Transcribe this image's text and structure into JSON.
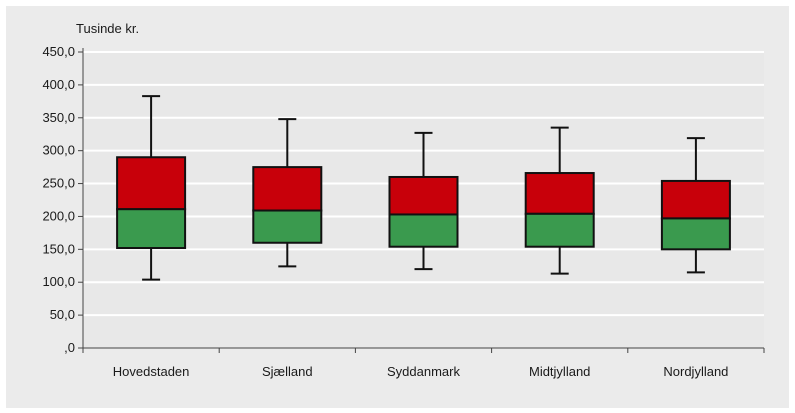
{
  "chart_data": {
    "type": "boxplot",
    "y_unit_label": "Tusinde kr.",
    "ylim": [
      0,
      450
    ],
    "yticks": [
      0,
      50,
      100,
      150,
      200,
      250,
      300,
      350,
      400,
      450
    ],
    "ytick_labels": [
      ",0",
      "50,0",
      "100,0",
      "150,0",
      "200,0",
      "250,0",
      "300,0",
      "350,0",
      "400,0",
      "450,0"
    ],
    "categories": [
      "Hovedstaden",
      "Sjælland",
      "Syddanmark",
      "Midtjylland",
      "Nordjylland"
    ],
    "boxes": [
      {
        "category": "Hovedstaden",
        "min": 104,
        "q1": 152,
        "median": 211,
        "q3": 290,
        "max": 383
      },
      {
        "category": "Sjælland",
        "min": 124,
        "q1": 160,
        "median": 209,
        "q3": 275,
        "max": 348
      },
      {
        "category": "Syddanmark",
        "min": 120,
        "q1": 154,
        "median": 203,
        "q3": 260,
        "max": 327
      },
      {
        "category": "Midtjylland",
        "min": 113,
        "q1": 154,
        "median": 204,
        "q3": 266,
        "max": 335
      },
      {
        "category": "Nordjylland",
        "min": 115,
        "q1": 150,
        "median": 197,
        "q3": 254,
        "max": 319
      }
    ],
    "colors": {
      "lower_box": "#3a9a4e",
      "upper_box": "#c8000a",
      "outline": "#111111",
      "gridline": "#ffffff",
      "plot_background": "#e8e8e8"
    },
    "grid": true
  }
}
